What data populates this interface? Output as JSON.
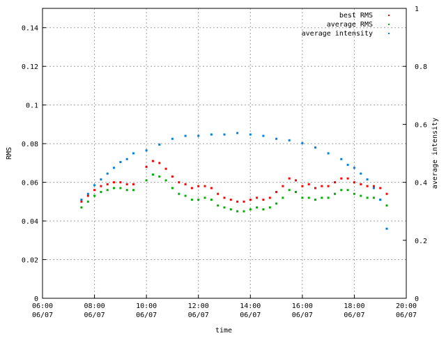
{
  "chart_data": {
    "type": "scatter",
    "xlabel": "time",
    "ylabel": "RMS",
    "y2label": "average intensity",
    "x_ticks": [
      {
        "hour": 6,
        "label1": "06:00",
        "label2": "06/07"
      },
      {
        "hour": 8,
        "label1": "08:00",
        "label2": "06/07"
      },
      {
        "hour": 10,
        "label1": "10:00",
        "label2": "06/07"
      },
      {
        "hour": 12,
        "label1": "12:00",
        "label2": "06/07"
      },
      {
        "hour": 14,
        "label1": "14:00",
        "label2": "06/07"
      },
      {
        "hour": 16,
        "label1": "16:00",
        "label2": "06/07"
      },
      {
        "hour": 18,
        "label1": "18:00",
        "label2": "06/07"
      },
      {
        "hour": 20,
        "label1": "20:00",
        "label2": "06/07"
      }
    ],
    "xlim": [
      6,
      20
    ],
    "ylim": [
      0,
      0.15
    ],
    "y_ticks": [
      0,
      0.02,
      0.04,
      0.06,
      0.08,
      0.1,
      0.12,
      0.14
    ],
    "y_tick_labels": [
      "0",
      "0.02",
      "0.04",
      "0.06",
      "0.08",
      "0.1",
      "0.12",
      "0.14"
    ],
    "y2lim": [
      0,
      1
    ],
    "y2_ticks": [
      0,
      0.2,
      0.4,
      0.6,
      0.8,
      1
    ],
    "y2_tick_labels": [
      "0",
      "0.2",
      "0.4",
      "0.6",
      "0.8",
      "1"
    ],
    "grid": true,
    "legend_position": "top-right",
    "colors": {
      "best": "#ff0000",
      "average": "#00b000",
      "intensity": "#0080e0"
    },
    "series": [
      {
        "name": "best RMS",
        "axis": "left",
        "x": [
          7.5,
          7.75,
          8.0,
          8.25,
          8.5,
          8.75,
          9.0,
          9.25,
          9.5,
          10.0,
          10.25,
          10.5,
          10.75,
          11.0,
          11.25,
          11.5,
          11.75,
          12.0,
          12.25,
          12.5,
          12.75,
          13.0,
          13.25,
          13.5,
          13.75,
          14.0,
          14.25,
          14.5,
          14.75,
          15.0,
          15.25,
          15.5,
          15.75,
          16.0,
          16.25,
          16.5,
          16.75,
          17.0,
          17.25,
          17.5,
          17.75,
          18.0,
          18.25,
          18.5,
          18.75,
          19.0,
          19.25
        ],
        "y": [
          0.05,
          0.053,
          0.056,
          0.058,
          0.059,
          0.06,
          0.06,
          0.059,
          0.059,
          0.068,
          0.071,
          0.07,
          0.067,
          0.063,
          0.06,
          0.059,
          0.057,
          0.058,
          0.058,
          0.057,
          0.054,
          0.052,
          0.051,
          0.05,
          0.05,
          0.051,
          0.052,
          0.051,
          0.052,
          0.055,
          0.058,
          0.062,
          0.061,
          0.058,
          0.059,
          0.057,
          0.058,
          0.058,
          0.06,
          0.062,
          0.062,
          0.06,
          0.059,
          0.058,
          0.058,
          0.057,
          0.054
        ]
      },
      {
        "name": "average RMS",
        "axis": "left",
        "x": [
          7.5,
          7.75,
          8.0,
          8.25,
          8.5,
          8.75,
          9.0,
          9.25,
          9.5,
          10.0,
          10.25,
          10.5,
          10.75,
          11.0,
          11.25,
          11.5,
          11.75,
          12.0,
          12.25,
          12.5,
          12.75,
          13.0,
          13.25,
          13.5,
          13.75,
          14.0,
          14.25,
          14.5,
          14.75,
          15.0,
          15.25,
          15.5,
          15.75,
          16.0,
          16.25,
          16.5,
          16.75,
          17.0,
          17.25,
          17.5,
          17.75,
          18.0,
          18.25,
          18.5,
          18.75,
          19.0,
          19.25
        ],
        "y": [
          0.047,
          0.05,
          0.053,
          0.055,
          0.056,
          0.057,
          0.057,
          0.056,
          0.056,
          0.061,
          0.064,
          0.063,
          0.061,
          0.057,
          0.054,
          0.053,
          0.051,
          0.051,
          0.052,
          0.051,
          0.048,
          0.047,
          0.046,
          0.045,
          0.045,
          0.046,
          0.047,
          0.046,
          0.047,
          0.049,
          0.052,
          0.056,
          0.055,
          0.052,
          0.052,
          0.051,
          0.052,
          0.052,
          0.054,
          0.056,
          0.056,
          0.054,
          0.053,
          0.052,
          0.052,
          0.051,
          0.048
        ]
      },
      {
        "name": "average intensity",
        "axis": "right",
        "x": [
          7.5,
          7.75,
          8.0,
          8.25,
          8.5,
          8.75,
          9.0,
          9.25,
          9.5,
          10.0,
          10.5,
          11.0,
          11.5,
          12.0,
          12.5,
          13.0,
          13.5,
          14.0,
          14.5,
          15.0,
          15.5,
          16.0,
          16.5,
          17.0,
          17.5,
          17.75,
          18.0,
          18.25,
          18.5,
          18.75,
          19.0,
          19.25
        ],
        "y": [
          0.34,
          0.36,
          0.39,
          0.41,
          0.43,
          0.45,
          0.47,
          0.48,
          0.5,
          0.51,
          0.53,
          0.55,
          0.56,
          0.56,
          0.565,
          0.565,
          0.57,
          0.565,
          0.56,
          0.55,
          0.545,
          0.535,
          0.52,
          0.5,
          0.48,
          0.46,
          0.45,
          0.43,
          0.41,
          0.38,
          0.34,
          0.24
        ]
      }
    ]
  }
}
